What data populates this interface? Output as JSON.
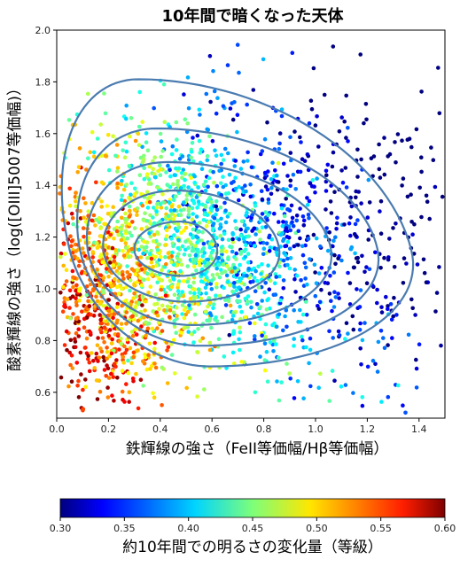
{
  "chart_data": {
    "type": "scatter",
    "title": "10年間で暗くなった天体",
    "xlabel": "鉄輝線の強さ（FeII等価幅/Hβ等価幅）",
    "ylabel": "酸素輝線の強さ（log([OIII]5007等価幅)）",
    "xlim": [
      0.0,
      1.5
    ],
    "ylim": [
      0.5,
      2.0
    ],
    "xticks": [
      "0.0",
      "0.2",
      "0.4",
      "0.6",
      "0.8",
      "1.0",
      "1.2",
      "1.4"
    ],
    "yticks": [
      "0.6",
      "0.8",
      "1.0",
      "1.2",
      "1.4",
      "1.6",
      "1.8",
      "2.0"
    ],
    "colorbar": {
      "label": "約10年間での明るさの変化量（等級）",
      "range": [
        0.3,
        0.6
      ],
      "ticks": [
        "0.30",
        "0.35",
        "0.40",
        "0.45",
        "0.50",
        "0.55",
        "0.60"
      ],
      "colormap": "jet"
    },
    "density_contours": {
      "center": [
        0.48,
        1.15
      ],
      "color": "#4a7bb0",
      "levels": [
        {
          "x": [
            0.3,
            0.62
          ],
          "y": [
            1.05,
            1.26
          ]
        },
        {
          "x": [
            0.18,
            0.86
          ],
          "y": [
            0.95,
            1.38
          ]
        },
        {
          "x": [
            0.12,
            1.06
          ],
          "y": [
            0.86,
            1.49
          ]
        },
        {
          "x": [
            0.09,
            1.24
          ],
          "y": [
            0.78,
            1.62
          ]
        },
        {
          "x": [
            0.05,
            1.37
          ],
          "y": [
            0.7,
            1.81
          ]
        }
      ]
    },
    "scatter_trend": {
      "high_change_region": {
        "x": [
          0.05,
          0.35
        ],
        "y": [
          0.55,
          1.0
        ],
        "change": 0.58
      },
      "low_change_region": {
        "x": [
          1.0,
          1.5
        ],
        "y": [
          0.6,
          1.9
        ],
        "change": 0.33
      },
      "point_count": 2600
    }
  }
}
